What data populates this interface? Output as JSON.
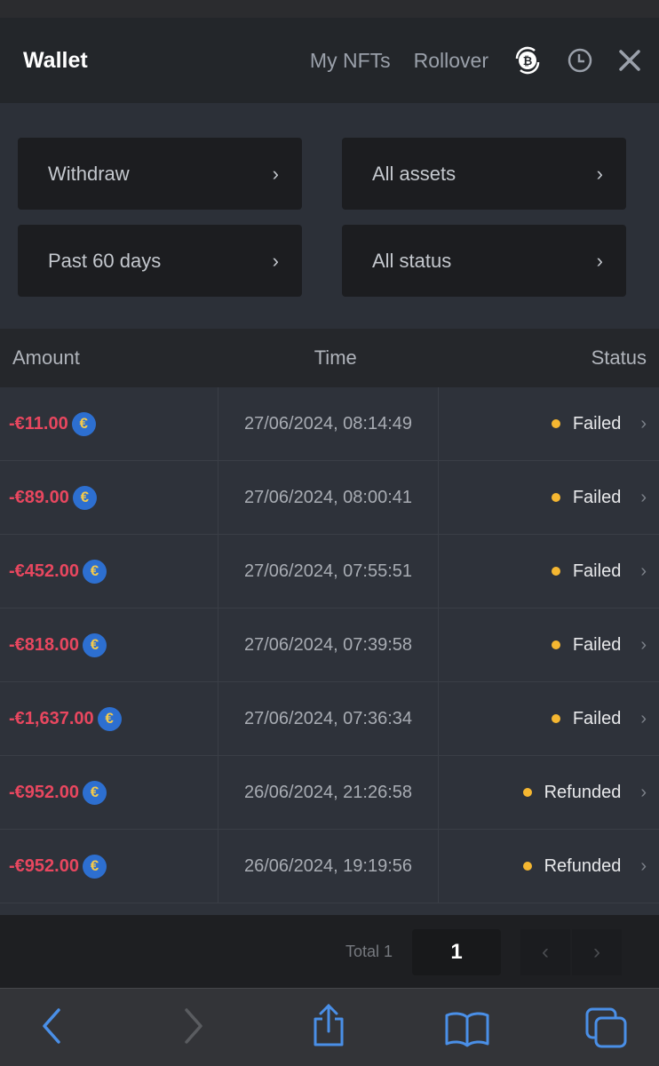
{
  "header": {
    "title": "Wallet",
    "links": [
      "My NFTs",
      "Rollover"
    ],
    "icons": [
      "bitcoin-rollover-icon",
      "history-clock-icon",
      "close-icon"
    ]
  },
  "filters": [
    {
      "label": "Withdraw"
    },
    {
      "label": "All assets"
    },
    {
      "label": "Past 60 days"
    },
    {
      "label": "All status"
    }
  ],
  "table": {
    "columns": [
      "Amount",
      "Time",
      "Status"
    ],
    "rows": [
      {
        "amount": "-€11.00",
        "time": "27/06/2024, 08:14:49",
        "status": "Failed"
      },
      {
        "amount": "-€89.00",
        "time": "27/06/2024, 08:00:41",
        "status": "Failed"
      },
      {
        "amount": "-€452.00",
        "time": "27/06/2024, 07:55:51",
        "status": "Failed"
      },
      {
        "amount": "-€818.00",
        "time": "27/06/2024, 07:39:58",
        "status": "Failed"
      },
      {
        "amount": "-€1,637.00",
        "time": "27/06/2024, 07:36:34",
        "status": "Failed"
      },
      {
        "amount": "-€952.00",
        "time": "26/06/2024, 21:26:58",
        "status": "Refunded"
      },
      {
        "amount": "-€952.00",
        "time": "26/06/2024, 19:19:56",
        "status": "Refunded"
      }
    ]
  },
  "currency_symbol": "€",
  "pagination": {
    "total": "Total 1",
    "page": "1"
  },
  "colors": {
    "negative_amount": "#e8475f",
    "status_dot": "#f5b731",
    "safari_accent": "#4a8fe7"
  }
}
